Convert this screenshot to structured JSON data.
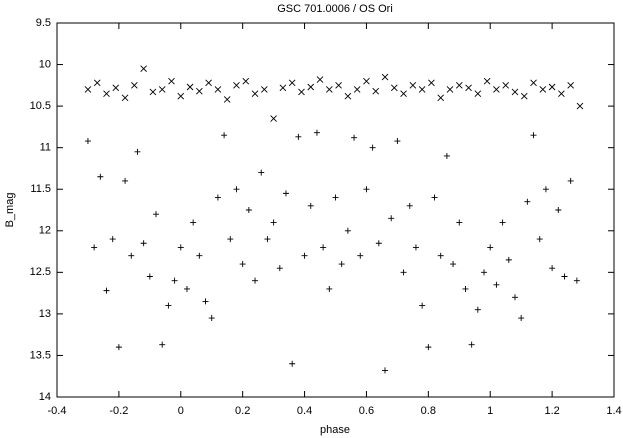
{
  "chart_data": {
    "type": "scatter",
    "title": "GSC 701.0006 / OS Ori",
    "x_label": "phase",
    "y_label": "B_mag",
    "xlim": [
      -0.4,
      1.4
    ],
    "xticks": [
      -0.4,
      -0.2,
      0,
      0.2,
      0.4,
      0.6,
      0.8,
      1,
      1.2,
      1.4
    ],
    "ylim": [
      9.5,
      14
    ],
    "yticks": [
      9.5,
      10,
      10.5,
      11,
      11.5,
      12,
      12.5,
      13,
      13.5,
      14
    ],
    "y_inverted": true,
    "grid": false,
    "series": [
      {
        "marker": "x",
        "color": "#000000",
        "x": [
          -0.3,
          -0.27,
          -0.24,
          -0.21,
          -0.18,
          -0.15,
          -0.12,
          -0.09,
          -0.06,
          -0.03,
          0,
          0.03,
          0.06,
          0.09,
          0.12,
          0.15,
          0.18,
          0.21,
          0.24,
          0.27,
          0.3,
          0.33,
          0.36,
          0.39,
          0.42,
          0.45,
          0.48,
          0.51,
          0.54,
          0.57,
          0.6,
          0.63,
          0.66,
          0.69,
          0.72,
          0.75,
          0.78,
          0.81,
          0.84,
          0.87,
          0.9,
          0.93,
          0.96,
          0.99,
          1.02,
          1.05,
          1.08,
          1.11,
          1.14,
          1.17,
          1.2,
          1.23,
          1.26,
          1.29
        ],
        "values": [
          10.3,
          10.22,
          10.35,
          10.28,
          10.4,
          10.25,
          10.05,
          10.33,
          10.3,
          10.2,
          10.38,
          10.27,
          10.32,
          10.22,
          10.3,
          10.42,
          10.25,
          10.2,
          10.35,
          10.3,
          10.65,
          10.28,
          10.22,
          10.33,
          10.27,
          10.18,
          10.3,
          10.25,
          10.38,
          10.3,
          10.2,
          10.32,
          10.15,
          10.28,
          10.35,
          10.25,
          10.3,
          10.22,
          10.4,
          10.3,
          10.25,
          10.28,
          10.35,
          10.2,
          10.3,
          10.25,
          10.33,
          10.38,
          10.22,
          10.3,
          10.27,
          10.35,
          10.25,
          10.5
        ]
      },
      {
        "marker": "+",
        "color": "#000000",
        "x": [
          -0.3,
          -0.28,
          -0.26,
          -0.24,
          -0.22,
          -0.2,
          -0.18,
          -0.16,
          -0.14,
          -0.12,
          -0.1,
          -0.08,
          -0.06,
          -0.04,
          -0.02,
          0,
          0.02,
          0.04,
          0.06,
          0.08,
          0.1,
          0.12,
          0.14,
          0.16,
          0.18,
          0.2,
          0.22,
          0.24,
          0.26,
          0.28,
          0.3,
          0.32,
          0.34,
          0.36,
          0.38,
          0.4,
          0.42,
          0.44,
          0.46,
          0.48,
          0.5,
          0.52,
          0.54,
          0.56,
          0.58,
          0.6,
          0.62,
          0.64,
          0.66,
          0.68,
          0.7,
          0.72,
          0.74,
          0.76,
          0.78,
          0.8,
          0.82,
          0.84,
          0.86,
          0.88,
          0.9,
          0.92,
          0.94,
          0.96,
          0.98,
          1,
          1.02,
          1.04,
          1.06,
          1.08,
          1.1,
          1.12,
          1.14,
          1.16,
          1.18,
          1.2,
          1.22,
          1.24,
          1.26,
          1.28
        ],
        "values": [
          10.92,
          12.2,
          11.35,
          12.72,
          12.1,
          13.4,
          11.4,
          12.3,
          11.05,
          12.15,
          12.55,
          11.8,
          13.37,
          12.9,
          12.6,
          12.2,
          12.7,
          11.9,
          12.3,
          12.85,
          13.05,
          11.6,
          10.85,
          12.1,
          11.5,
          12.4,
          11.75,
          12.6,
          11.3,
          12.1,
          11.9,
          12.45,
          11.55,
          13.6,
          10.87,
          12.3,
          11.7,
          10.82,
          12.2,
          12.7,
          11.6,
          12.4,
          12.0,
          10.88,
          12.3,
          11.5,
          11.0,
          12.15,
          13.68,
          11.85,
          10.92,
          12.5,
          11.7,
          12.2,
          12.9,
          13.4,
          11.6,
          12.3,
          11.1,
          12.4,
          11.9,
          12.7,
          13.37,
          12.95,
          12.5,
          12.2,
          12.65,
          11.9,
          12.35,
          12.8,
          13.05,
          11.65,
          10.85,
          12.1,
          11.5,
          12.45,
          11.75,
          12.55,
          11.4,
          12.6
        ]
      }
    ]
  }
}
